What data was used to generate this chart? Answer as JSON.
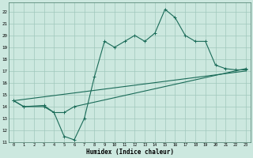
{
  "xlabel": "Humidex (Indice chaleur)",
  "bg_color": "#cce8df",
  "grid_color": "#a0c8bc",
  "line_color": "#1a6b58",
  "xlim": [
    -0.5,
    23.5
  ],
  "ylim": [
    11.0,
    22.8
  ],
  "xticks": [
    0,
    1,
    2,
    3,
    4,
    5,
    6,
    7,
    8,
    9,
    10,
    11,
    12,
    13,
    14,
    15,
    16,
    17,
    18,
    19,
    20,
    21,
    22,
    23
  ],
  "yticks": [
    11,
    12,
    13,
    14,
    15,
    16,
    17,
    18,
    19,
    20,
    21,
    22
  ],
  "curve1_x": [
    0,
    1,
    3,
    4,
    5,
    6,
    7,
    8,
    9,
    10,
    11,
    12,
    13,
    14,
    15,
    16,
    17,
    18,
    19,
    20,
    21,
    22,
    23
  ],
  "curve1_y": [
    14.5,
    14.0,
    14.0,
    13.5,
    11.5,
    11.2,
    13.0,
    16.5,
    19.5,
    19.0,
    19.5,
    20.0,
    19.5,
    20.2,
    22.2,
    21.5,
    20.0,
    19.5,
    19.5,
    17.5,
    17.2,
    17.1,
    17.1
  ],
  "curve2_x": [
    0,
    1,
    3,
    4,
    5,
    6,
    23
  ],
  "curve2_y": [
    14.5,
    14.0,
    14.1,
    13.5,
    13.5,
    14.0,
    17.2
  ],
  "curve3_x": [
    0,
    23
  ],
  "curve3_y": [
    14.5,
    17.0
  ]
}
